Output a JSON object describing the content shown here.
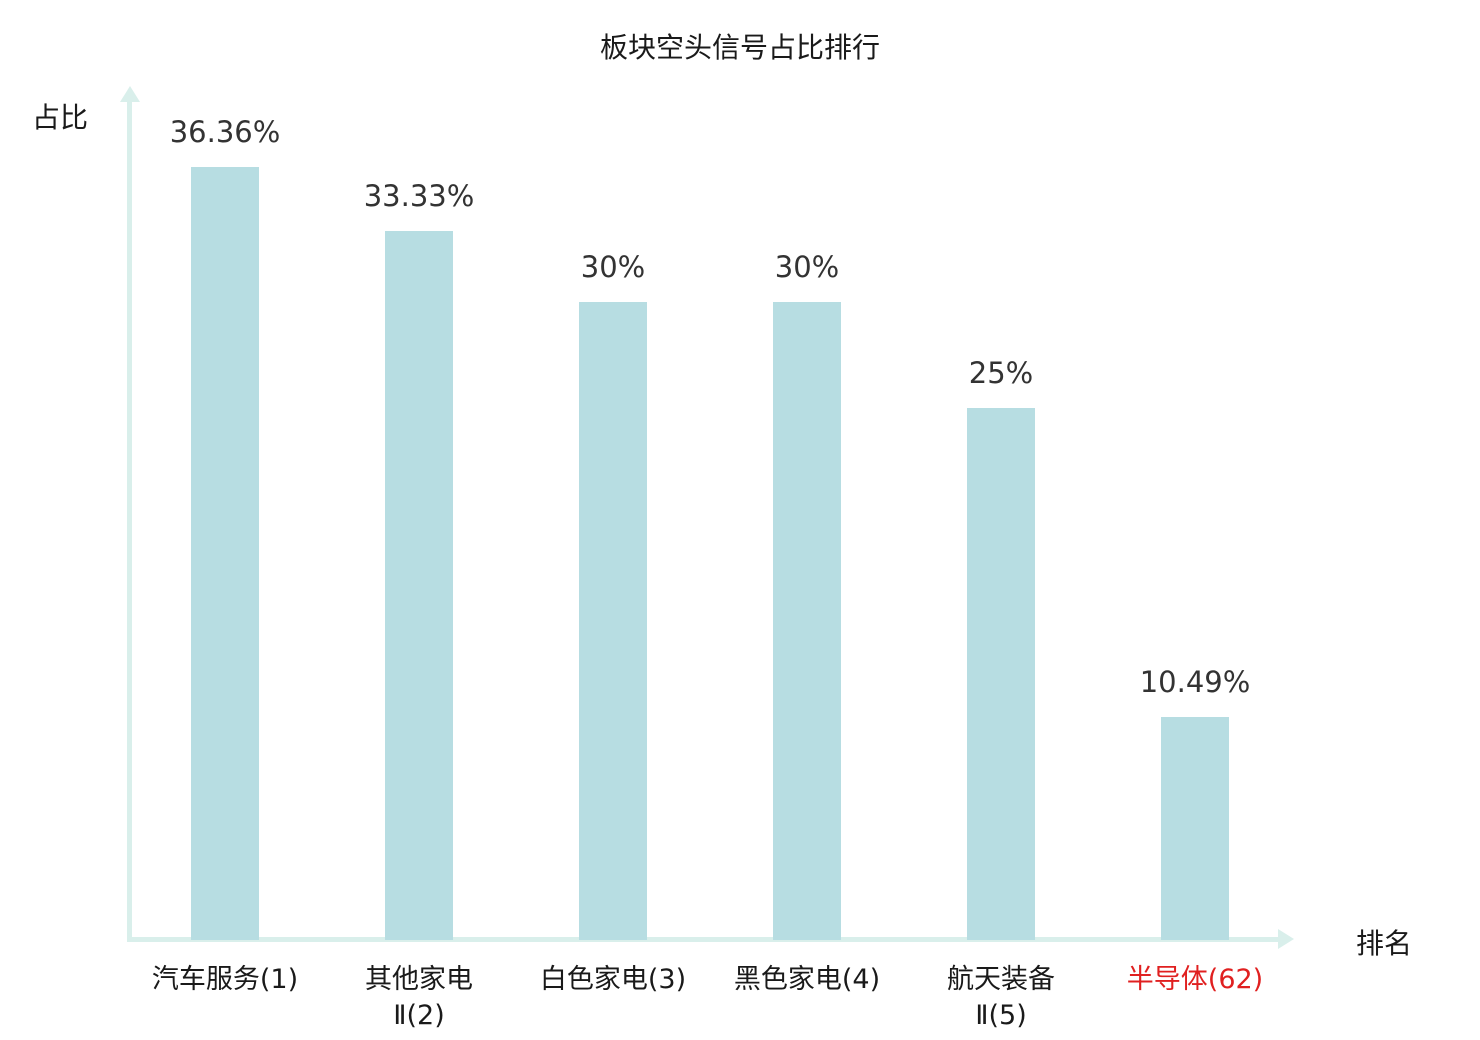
{
  "chart_data": {
    "type": "bar",
    "title": "板块空头信号占比排行",
    "xlabel": "排名",
    "ylabel": "占比",
    "categories": [
      "汽车服务(1)",
      "其他家电Ⅱ(2)",
      "白色家电(3)",
      "黑色家电(4)",
      "航天装备Ⅱ(5)",
      "半导体(62)"
    ],
    "category_lines": [
      [
        "汽车服务(1)"
      ],
      [
        "其他家电",
        "Ⅱ(2)"
      ],
      [
        "白色家电(3)"
      ],
      [
        "黑色家电(4)"
      ],
      [
        "航天装备",
        "Ⅱ(5)"
      ],
      [
        "半导体(62)"
      ]
    ],
    "values": [
      36.36,
      33.33,
      30,
      30,
      25,
      10.49
    ],
    "value_labels": [
      "36.36%",
      "33.33%",
      "30%",
      "30%",
      "25%",
      "10.49%"
    ],
    "highlight_index": 5,
    "ylim": [
      0,
      40
    ],
    "grid": false,
    "legend": "none",
    "colors": {
      "bar": "#b7dde2",
      "axis": "#d9efeb",
      "text": "#333333",
      "category_text": "#1a1a1a",
      "highlight": "#e02020",
      "background": "#ffffff"
    }
  }
}
